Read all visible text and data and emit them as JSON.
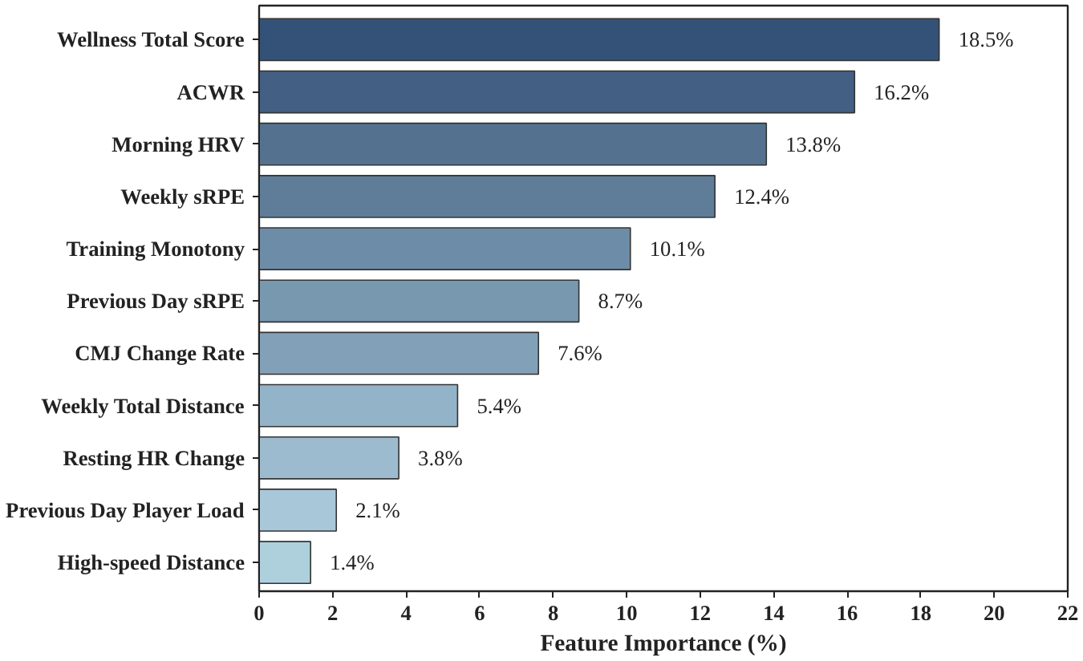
{
  "chart_data": {
    "type": "bar",
    "orientation": "horizontal",
    "xlabel": "Feature Importance (%)",
    "categories": [
      "Wellness Total Score",
      "ACWR",
      "Morning HRV",
      "Weekly sRPE",
      "Training Monotony",
      "Previous Day sRPE",
      "CMJ Change Rate",
      "Weekly Total Distance",
      "Resting HR Change",
      "Previous Day Player Load",
      "High-speed Distance"
    ],
    "values": [
      18.5,
      16.2,
      13.8,
      12.4,
      10.1,
      8.7,
      7.6,
      5.4,
      3.8,
      2.1,
      1.4
    ],
    "value_labels": [
      "18.5%",
      "16.2%",
      "13.8%",
      "12.4%",
      "10.1%",
      "8.7%",
      "7.6%",
      "5.4%",
      "3.8%",
      "2.1%",
      "1.4%"
    ],
    "colors": [
      "#345277",
      "#435f83",
      "#547290",
      "#5f7d99",
      "#6d8ca8",
      "#7898b0",
      "#82a1b8",
      "#93b3c8",
      "#9cbbce",
      "#a8c8da",
      "#aed0dd"
    ],
    "xlim": [
      0,
      22
    ],
    "xticks": [
      0,
      2,
      4,
      6,
      8,
      10,
      12,
      14,
      16,
      18,
      20,
      22
    ],
    "grid": false
  }
}
